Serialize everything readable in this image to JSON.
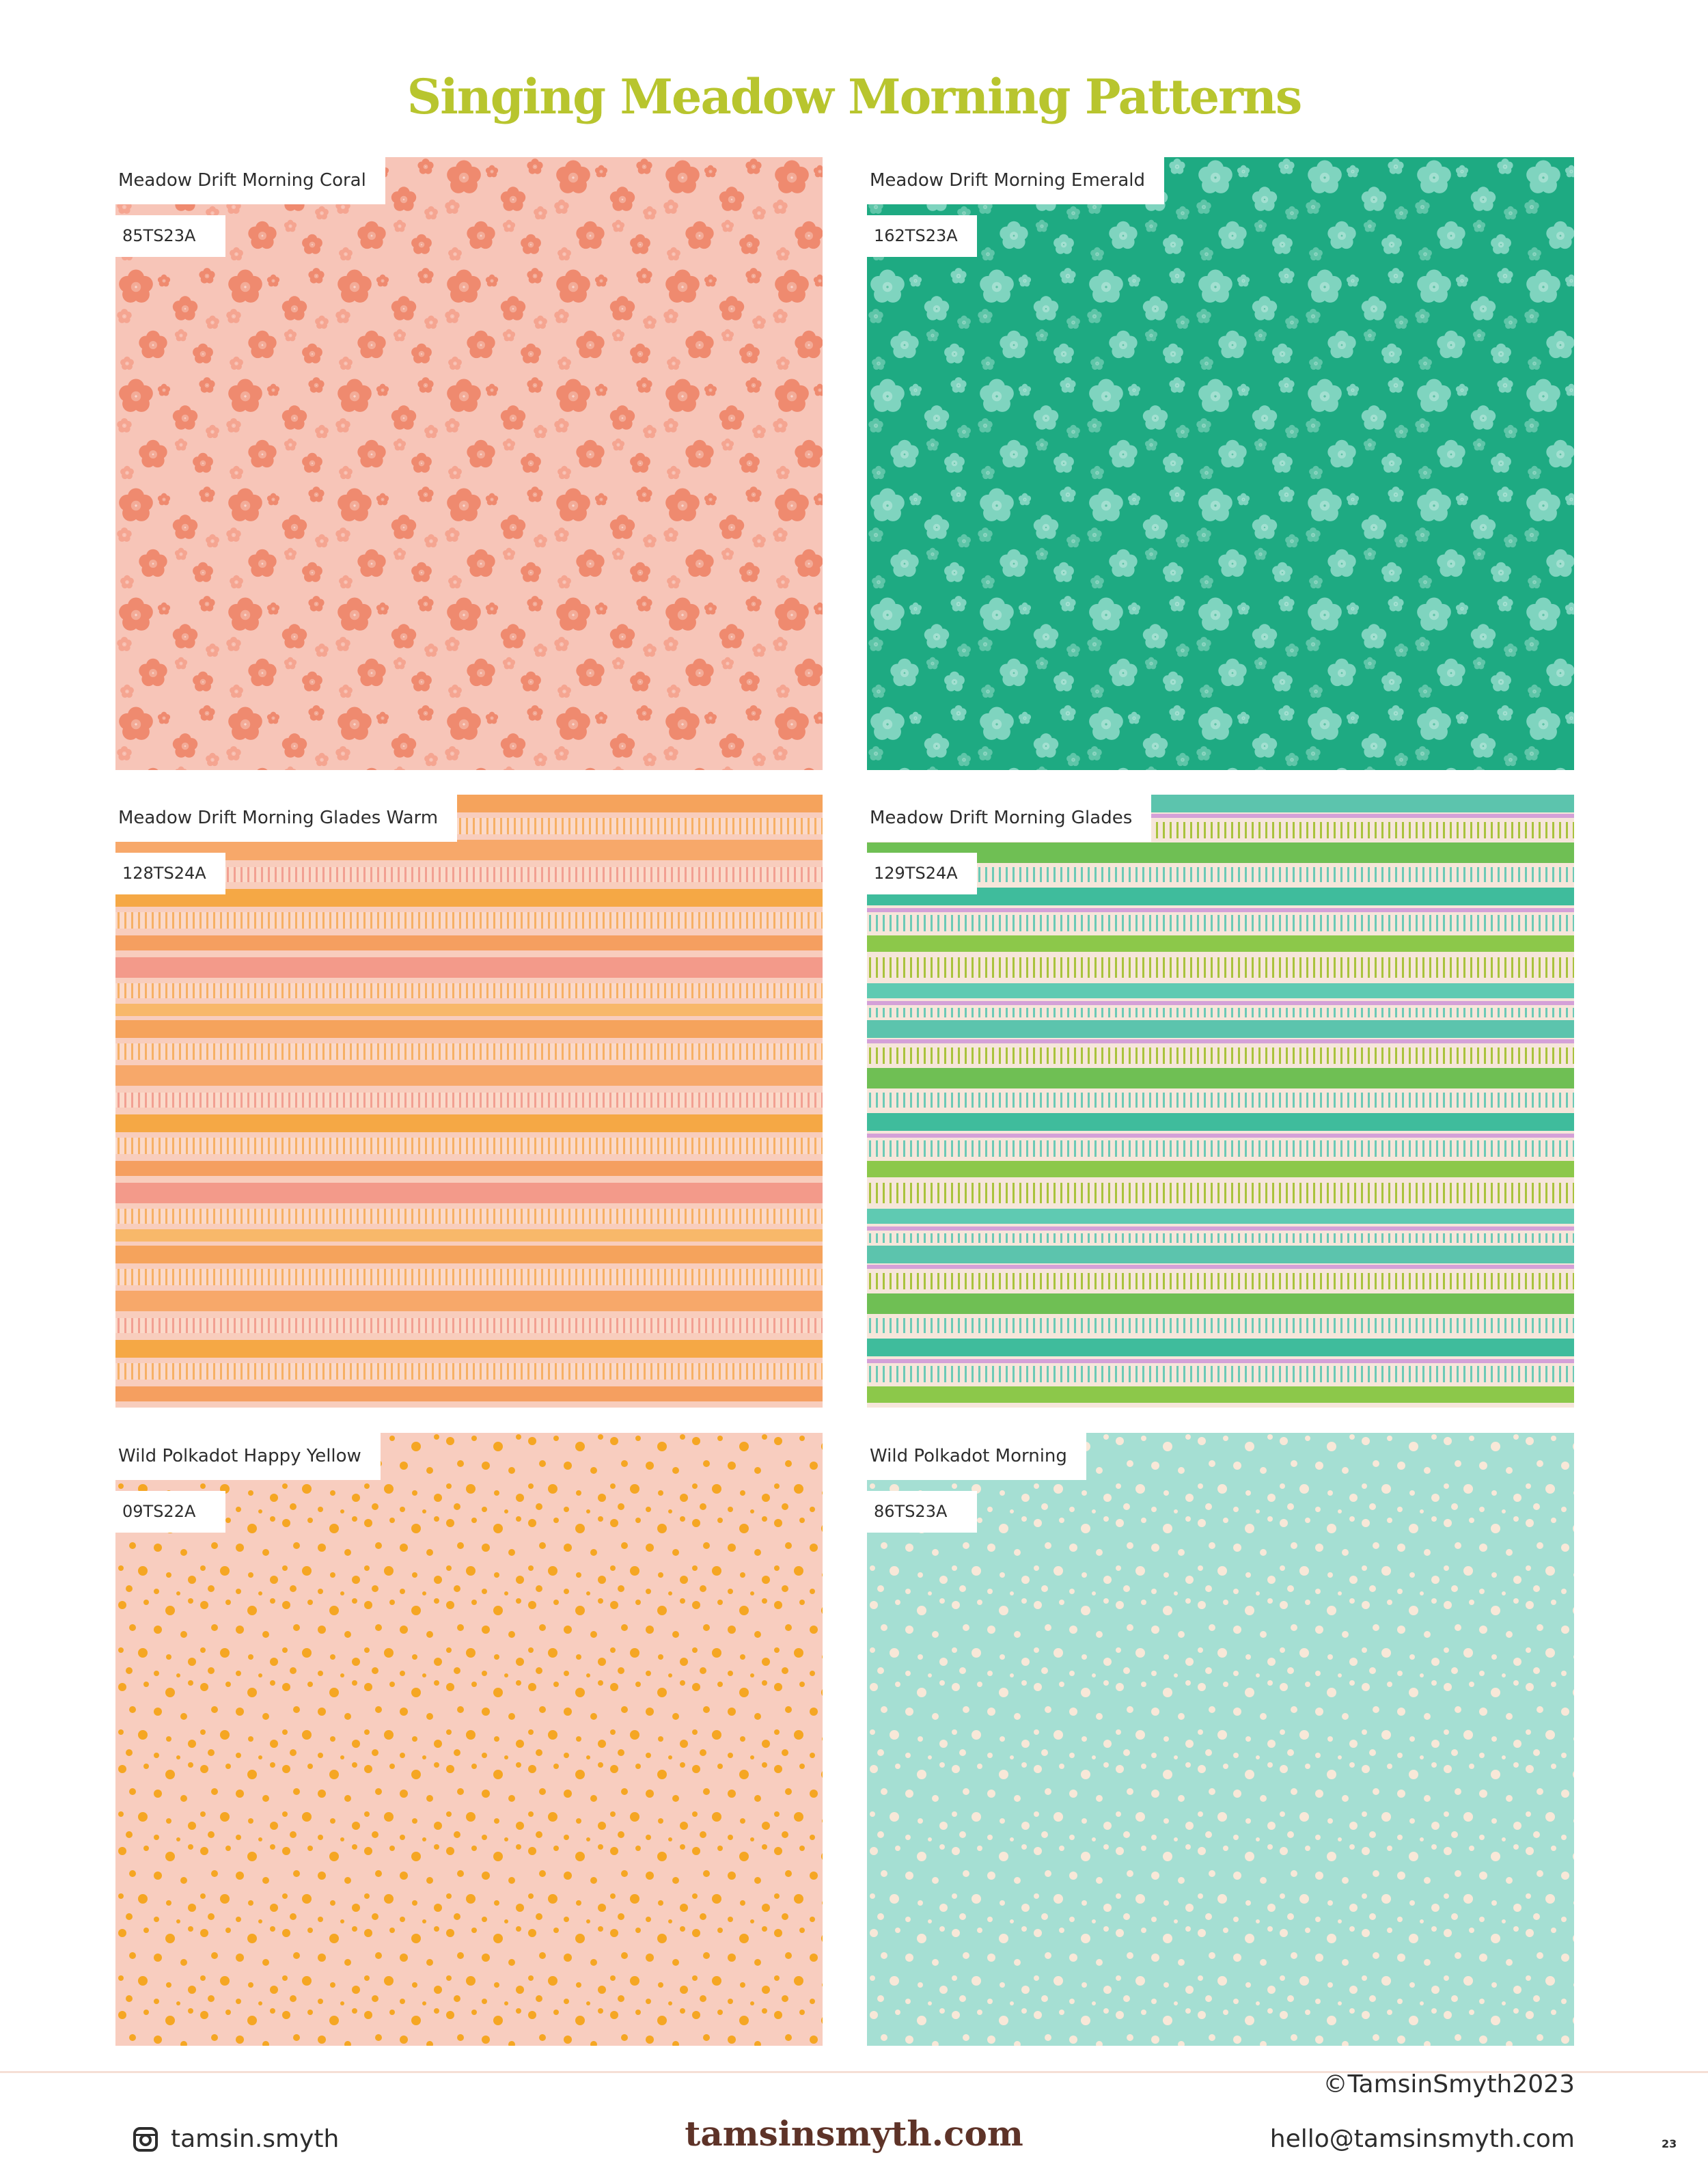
{
  "header": {
    "title": "Singing Meadow Morning Patterns"
  },
  "panels": [
    {
      "name": "Meadow Drift Morning Coral",
      "code": "85TS23A"
    },
    {
      "name": "Meadow Drift Morning Emerald",
      "code": "162TS23A"
    },
    {
      "name": "Meadow Drift Morning Glades Warm",
      "code": "128TS24A"
    },
    {
      "name": "Meadow Drift Morning Glades",
      "code": "129TS24A"
    },
    {
      "name": "Wild Polkadot Happy Yellow",
      "code": "09TS22A"
    },
    {
      "name": "Wild Polkadot Morning",
      "code": "86TS23A"
    }
  ],
  "footer": {
    "instagram": "tamsin.smyth",
    "logo": "tamsinsmyth.com",
    "copyright": "©TamsinSmyth2023",
    "email": "hello@tamsinsmyth.com",
    "page_number": "23"
  }
}
